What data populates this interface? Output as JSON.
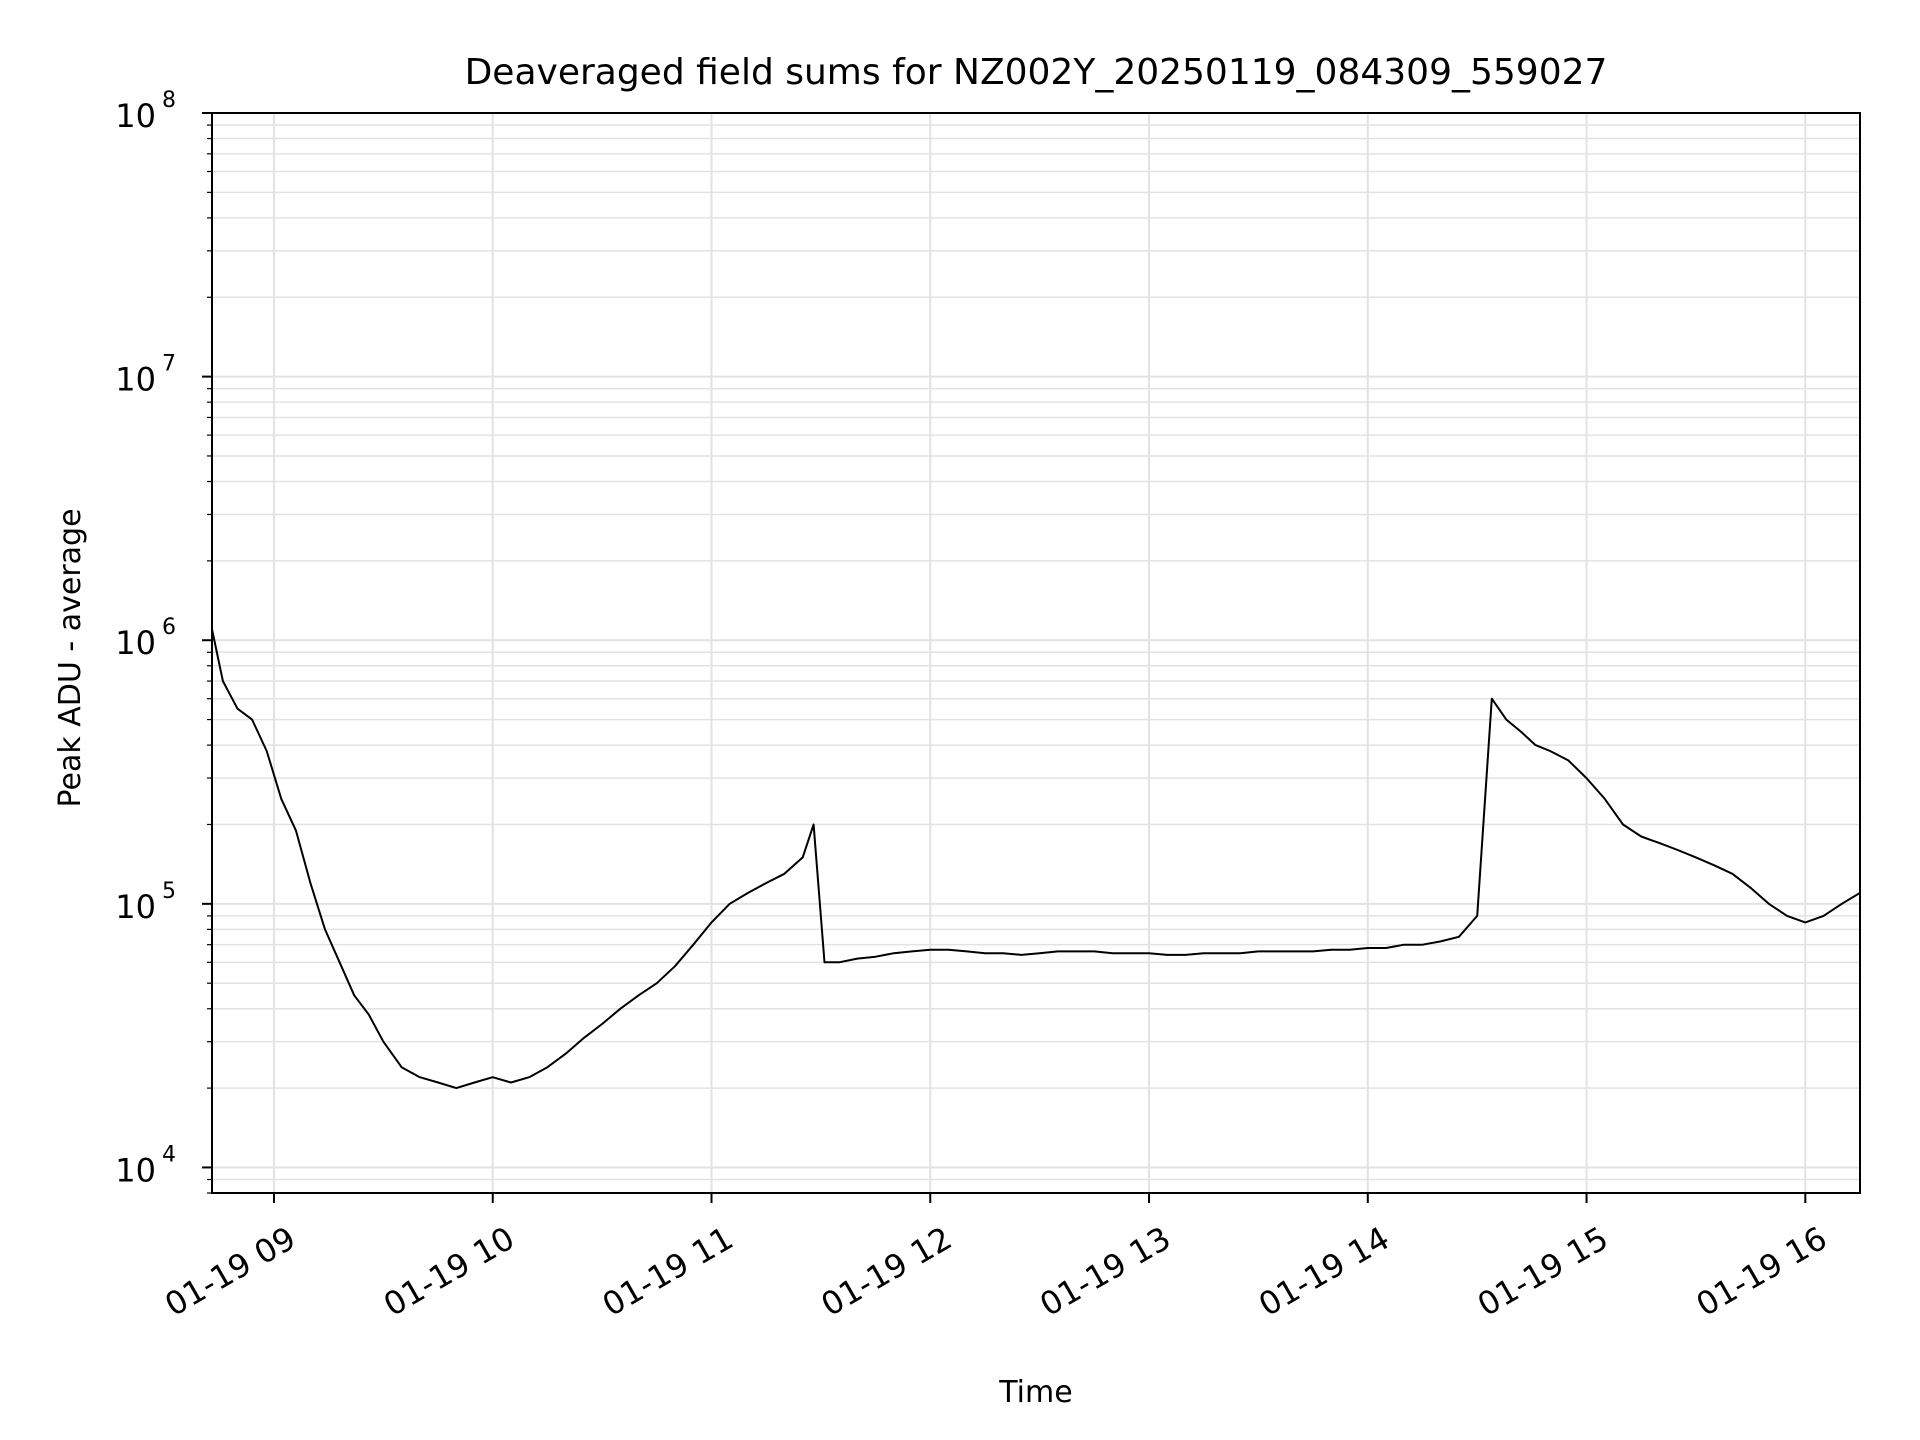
{
  "chart_data": {
    "type": "line",
    "title": "Deaveraged field sums for NZ002Y_20250119_084309_559027",
    "xlabel": "Time",
    "ylabel": "Peak ADU - average",
    "yscale": "log",
    "ylim": [
      8000,
      100000000
    ],
    "xlim": [
      "2025-01-19 08:43",
      "2025-01-19 16:15"
    ],
    "grid": true,
    "x_ticks": [
      {
        "label": "01-19 09",
        "t": "2025-01-19 09:00"
      },
      {
        "label": "01-19 10",
        "t": "2025-01-19 10:00"
      },
      {
        "label": "01-19 11",
        "t": "2025-01-19 11:00"
      },
      {
        "label": "01-19 12",
        "t": "2025-01-19 12:00"
      },
      {
        "label": "01-19 13",
        "t": "2025-01-19 13:00"
      },
      {
        "label": "01-19 14",
        "t": "2025-01-19 14:00"
      },
      {
        "label": "01-19 15",
        "t": "2025-01-19 15:00"
      },
      {
        "label": "01-19 16",
        "t": "2025-01-19 16:00"
      }
    ],
    "y_ticks": [
      {
        "base": "10",
        "exp": "4",
        "value": 10000
      },
      {
        "base": "10",
        "exp": "5",
        "value": 100000
      },
      {
        "base": "10",
        "exp": "6",
        "value": 1000000
      },
      {
        "base": "10",
        "exp": "7",
        "value": 10000000
      },
      {
        "base": "10",
        "exp": "8",
        "value": 100000000
      }
    ],
    "series": [
      {
        "color": "#000000",
        "points": [
          [
            "2025-01-19 08:43",
            1100000
          ],
          [
            "2025-01-19 08:46",
            700000
          ],
          [
            "2025-01-19 08:50",
            550000
          ],
          [
            "2025-01-19 08:54",
            500000
          ],
          [
            "2025-01-19 08:58",
            380000
          ],
          [
            "2025-01-19 09:02",
            250000
          ],
          [
            "2025-01-19 09:06",
            190000
          ],
          [
            "2025-01-19 09:10",
            120000
          ],
          [
            "2025-01-19 09:14",
            80000
          ],
          [
            "2025-01-19 09:18",
            60000
          ],
          [
            "2025-01-19 09:22",
            45000
          ],
          [
            "2025-01-19 09:26",
            38000
          ],
          [
            "2025-01-19 09:30",
            30000
          ],
          [
            "2025-01-19 09:35",
            24000
          ],
          [
            "2025-01-19 09:40",
            22000
          ],
          [
            "2025-01-19 09:45",
            21000
          ],
          [
            "2025-01-19 09:50",
            20000
          ],
          [
            "2025-01-19 09:55",
            21000
          ],
          [
            "2025-01-19 10:00",
            22000
          ],
          [
            "2025-01-19 10:05",
            21000
          ],
          [
            "2025-01-19 10:10",
            22000
          ],
          [
            "2025-01-19 10:15",
            24000
          ],
          [
            "2025-01-19 10:20",
            27000
          ],
          [
            "2025-01-19 10:25",
            31000
          ],
          [
            "2025-01-19 10:30",
            35000
          ],
          [
            "2025-01-19 10:35",
            40000
          ],
          [
            "2025-01-19 10:40",
            45000
          ],
          [
            "2025-01-19 10:45",
            50000
          ],
          [
            "2025-01-19 10:50",
            58000
          ],
          [
            "2025-01-19 10:55",
            70000
          ],
          [
            "2025-01-19 11:00",
            85000
          ],
          [
            "2025-01-19 11:05",
            100000
          ],
          [
            "2025-01-19 11:10",
            110000
          ],
          [
            "2025-01-19 11:15",
            120000
          ],
          [
            "2025-01-19 11:20",
            130000
          ],
          [
            "2025-01-19 11:25",
            150000
          ],
          [
            "2025-01-19 11:28",
            200000
          ],
          [
            "2025-01-19 11:31",
            60000
          ],
          [
            "2025-01-19 11:35",
            60000
          ],
          [
            "2025-01-19 11:40",
            62000
          ],
          [
            "2025-01-19 11:45",
            63000
          ],
          [
            "2025-01-19 11:50",
            65000
          ],
          [
            "2025-01-19 11:55",
            66000
          ],
          [
            "2025-01-19 12:00",
            67000
          ],
          [
            "2025-01-19 12:05",
            67000
          ],
          [
            "2025-01-19 12:10",
            66000
          ],
          [
            "2025-01-19 12:15",
            65000
          ],
          [
            "2025-01-19 12:20",
            65000
          ],
          [
            "2025-01-19 12:25",
            64000
          ],
          [
            "2025-01-19 12:30",
            65000
          ],
          [
            "2025-01-19 12:35",
            66000
          ],
          [
            "2025-01-19 12:40",
            66000
          ],
          [
            "2025-01-19 12:45",
            66000
          ],
          [
            "2025-01-19 12:50",
            65000
          ],
          [
            "2025-01-19 12:55",
            65000
          ],
          [
            "2025-01-19 13:00",
            65000
          ],
          [
            "2025-01-19 13:05",
            64000
          ],
          [
            "2025-01-19 13:10",
            64000
          ],
          [
            "2025-01-19 13:15",
            65000
          ],
          [
            "2025-01-19 13:20",
            65000
          ],
          [
            "2025-01-19 13:25",
            65000
          ],
          [
            "2025-01-19 13:30",
            66000
          ],
          [
            "2025-01-19 13:35",
            66000
          ],
          [
            "2025-01-19 13:40",
            66000
          ],
          [
            "2025-01-19 13:45",
            66000
          ],
          [
            "2025-01-19 13:50",
            67000
          ],
          [
            "2025-01-19 13:55",
            67000
          ],
          [
            "2025-01-19 14:00",
            68000
          ],
          [
            "2025-01-19 14:05",
            68000
          ],
          [
            "2025-01-19 14:10",
            70000
          ],
          [
            "2025-01-19 14:15",
            70000
          ],
          [
            "2025-01-19 14:20",
            72000
          ],
          [
            "2025-01-19 14:25",
            75000
          ],
          [
            "2025-01-19 14:30",
            90000
          ],
          [
            "2025-01-19 14:34",
            600000
          ],
          [
            "2025-01-19 14:38",
            500000
          ],
          [
            "2025-01-19 14:42",
            450000
          ],
          [
            "2025-01-19 14:46",
            400000
          ],
          [
            "2025-01-19 14:50",
            380000
          ],
          [
            "2025-01-19 14:55",
            350000
          ],
          [
            "2025-01-19 15:00",
            300000
          ],
          [
            "2025-01-19 15:05",
            250000
          ],
          [
            "2025-01-19 15:10",
            200000
          ],
          [
            "2025-01-19 15:15",
            180000
          ],
          [
            "2025-01-19 15:20",
            170000
          ],
          [
            "2025-01-19 15:25",
            160000
          ],
          [
            "2025-01-19 15:30",
            150000
          ],
          [
            "2025-01-19 15:35",
            140000
          ],
          [
            "2025-01-19 15:40",
            130000
          ],
          [
            "2025-01-19 15:45",
            115000
          ],
          [
            "2025-01-19 15:50",
            100000
          ],
          [
            "2025-01-19 15:55",
            90000
          ],
          [
            "2025-01-19 16:00",
            85000
          ],
          [
            "2025-01-19 16:05",
            90000
          ],
          [
            "2025-01-19 16:10",
            100000
          ],
          [
            "2025-01-19 16:15",
            110000
          ]
        ]
      }
    ]
  }
}
